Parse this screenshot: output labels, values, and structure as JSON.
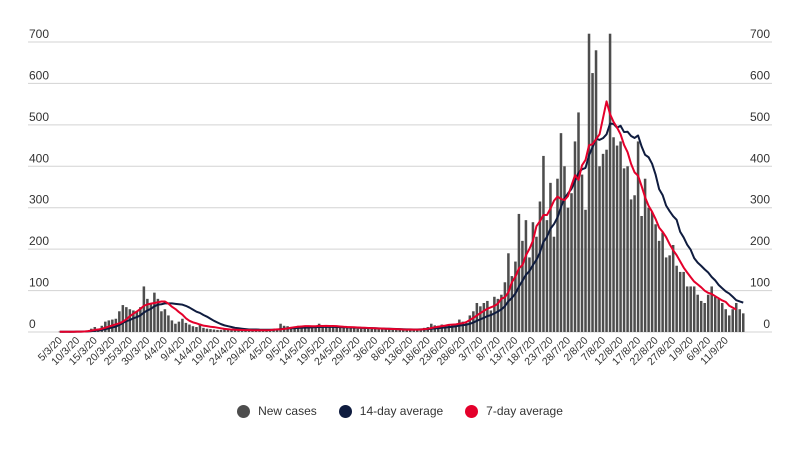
{
  "chart_data": {
    "type": "bar",
    "start_date": "2020-03-05",
    "ylim": [
      0,
      700
    ],
    "yticks": [
      0,
      100,
      200,
      300,
      400,
      500,
      600,
      700
    ],
    "grid": true,
    "legend_position": "bottom-center",
    "x_tick_labels": [
      "5/3/20",
      "10/3/20",
      "15/3/20",
      "20/3/20",
      "25/3/20",
      "30/3/20",
      "4/4/20",
      "9/4/20",
      "14/4/20",
      "19/4/20",
      "24/4/20",
      "29/4/20",
      "4/5/20",
      "9/5/20",
      "14/5/20",
      "19/5/20",
      "24/5/20",
      "29/5/20",
      "3/6/20",
      "8/6/20",
      "13/6/20",
      "18/6/20",
      "23/6/20",
      "28/6/20",
      "3/7/20",
      "8/7/20",
      "13/7/20",
      "18/7/20",
      "23/7/20",
      "28/7/20",
      "2/8/20",
      "7/8/20",
      "12/8/20",
      "17/8/20",
      "22/8/20",
      "27/8/20",
      "1/9/20",
      "6/9/20",
      "11/9/20"
    ],
    "series": [
      {
        "name": "New cases",
        "kind": "bar",
        "color": "#4d4d4d",
        "values": [
          1,
          0,
          1,
          0,
          1,
          1,
          1,
          2,
          3,
          8,
          12,
          8,
          15,
          25,
          28,
          30,
          32,
          50,
          65,
          60,
          55,
          52,
          50,
          60,
          110,
          80,
          70,
          95,
          80,
          50,
          55,
          40,
          28,
          20,
          25,
          32,
          22,
          18,
          14,
          12,
          20,
          10,
          8,
          7,
          6,
          5,
          5,
          6,
          5,
          4,
          4,
          4,
          5,
          3,
          4,
          4,
          3,
          4,
          4,
          5,
          5,
          6,
          8,
          20,
          15,
          14,
          12,
          13,
          15,
          15,
          12,
          12,
          14,
          13,
          20,
          14,
          13,
          15,
          14,
          13,
          12,
          10,
          10,
          9,
          9,
          8,
          8,
          9,
          8,
          8,
          8,
          7,
          7,
          6,
          6,
          5,
          5,
          6,
          5,
          4,
          8,
          5,
          6,
          8,
          10,
          12,
          20,
          16,
          15,
          18,
          14,
          18,
          16,
          20,
          30,
          25,
          22,
          40,
          50,
          70,
          62,
          70,
          75,
          52,
          85,
          80,
          90,
          120,
          190,
          135,
          170,
          285,
          220,
          270,
          180,
          265,
          230,
          315,
          425,
          270,
          360,
          230,
          370,
          480,
          400,
          300,
          335,
          460,
          530,
          380,
          295,
          720,
          625,
          680,
          400,
          430,
          440,
          720,
          470,
          450,
          460,
          395,
          400,
          320,
          330,
          460,
          280,
          370,
          300,
          290,
          260,
          220,
          240,
          180,
          185,
          210,
          160,
          145,
          145,
          110,
          110,
          110,
          90,
          75,
          70,
          90,
          110,
          85,
          80,
          70,
          55,
          40,
          55,
          70,
          55,
          45
        ]
      },
      {
        "name": "14-day average",
        "kind": "line",
        "color": "#0f1c3f",
        "values": [
          0.5,
          0.6,
          0.6,
          0.6,
          0.7,
          0.8,
          0.9,
          1.1,
          1.5,
          2.2,
          3.1,
          3.8,
          5,
          7,
          9,
          11,
          13,
          17,
          22,
          26,
          29,
          33,
          36,
          40,
          47,
          52,
          56,
          62,
          66,
          67,
          69,
          69,
          69,
          68,
          67,
          66,
          63,
          59,
          54,
          49,
          46,
          41,
          37,
          32,
          27,
          23,
          19,
          16,
          14,
          12,
          10,
          9,
          8,
          7,
          6,
          6,
          6,
          5.6,
          5.5,
          5.5,
          5.5,
          5.6,
          5.9,
          7.1,
          7.8,
          8.4,
          8.9,
          9.4,
          9.9,
          10.2,
          10.5,
          10.8,
          11.3,
          11.7,
          12.2,
          12.3,
          12.3,
          12.4,
          12.3,
          12.1,
          11.8,
          11.4,
          11.2,
          10.8,
          10.5,
          10.2,
          9.9,
          9.7,
          9.5,
          9.3,
          9.0,
          8.7,
          8.4,
          8.0,
          7.7,
          7.4,
          7.1,
          6.9,
          6.6,
          6.3,
          6.3,
          6.1,
          6.1,
          6.2,
          6.4,
          6.9,
          7.9,
          8.6,
          9.3,
          10.3,
          10.9,
          11.8,
          12.7,
          13.7,
          15.4,
          16.6,
          17.6,
          19.9,
          22.8,
          27.1,
          30.6,
          34.3,
          38.3,
          40.8,
          44.9,
          49.4,
          54.7,
          62.2,
          74.2,
          82.3,
          92.8,
          109.6,
          123.3,
          138.2,
          146.9,
          161.6,
          174.1,
          192.0,
          217.6,
          229.5,
          249.6,
          260.3,
          276.3,
          301.5,
          322.9,
          334.5,
          345.5,
          363.6,
          384.3,
          392.8,
          396.1,
          426.3,
          445.9,
          467.0,
          463.7,
          467.9,
          477.1,
          502.9,
          502.3,
          493.1,
          497.7,
          482.6,
          483.3,
          473.0,
          468.4,
          474.3,
          447.9,
          427.6,
          421.8,
          406.0,
          379.6,
          344.9,
          330.4,
          305.0,
          291.6,
          279.6,
          270.7,
          242.0,
          228.3,
          210.7,
          198.6,
          178.3,
          167.4,
          159.6,
          151.2,
          143.5,
          132.8,
          124.6,
          113.4,
          105.5,
          98.1,
          92.8,
          85.0,
          76.8,
          73.7,
          70.9
        ]
      },
      {
        "name": "7-day average",
        "kind": "line",
        "color": "#e4002b",
        "values": [
          0.6,
          0.6,
          0.6,
          0.6,
          0.7,
          0.9,
          1.0,
          1.3,
          2.0,
          3.4,
          5.0,
          6.0,
          7.6,
          10.4,
          13.1,
          15.7,
          18.6,
          21.0,
          24.9,
          30.7,
          38.3,
          44.3,
          49.4,
          55.7,
          63.1,
          66.7,
          68.4,
          70.1,
          71.9,
          73.6,
          73.6,
          68.6,
          61.1,
          55.4,
          48.1,
          41.9,
          33.1,
          27.0,
          23.3,
          21.0,
          18.0,
          15.4,
          14.1,
          12.7,
          11.9,
          10.4,
          8.9,
          7.6,
          6.7,
          5.9,
          5.4,
          5.1,
          4.9,
          4.6,
          4.4,
          4.1,
          4.1,
          4.1,
          4.1,
          4.2,
          4.4,
          5.3,
          6.4,
          6.4,
          7.4,
          8.7,
          10.3,
          11.6,
          12.7,
          13.4,
          14.1,
          14.1,
          13.9,
          13.9,
          14.7,
          14.5,
          14.7,
          14.6,
          14.4,
          14.1,
          13.4,
          12.6,
          12.1,
          11.9,
          11.4,
          11.0,
          10.6,
          10.4,
          9.8,
          9.3,
          8.9,
          8.6,
          8.3,
          7.9,
          7.6,
          7.3,
          6.9,
          6.5,
          6.1,
          5.7,
          5.9,
          5.6,
          5.7,
          6.1,
          7.0,
          7.7,
          9.6,
          11.3,
          12.6,
          14.1,
          15.3,
          17.3,
          17.9,
          18.4,
          20.1,
          21.3,
          24.0,
          28.9,
          34.0,
          39.9,
          45.6,
          51.1,
          56.1,
          59.7,
          62.9,
          68.6,
          80.3,
          83.9,
          95.6,
          120.4,
          133.6,
          153.6,
          161.4,
          185.1,
          200.7,
          220.1,
          255.4,
          267.3,
          282.4,
          282.3,
          298.1,
          316.7,
          326.7,
          321.3,
          318.4,
          328.1,
          353.9,
          378.3,
          367.4,
          402.3,
          415.3,
          450.7,
          453.3,
          465.3,
          477.1,
          516.7,
          556.7,
          525.9,
          507.1,
          493.6,
          477.1,
          451.4,
          434.0,
          405.8,
          385.3,
          377.1,
          352.1,
          325.3,
          304.4,
          290.1,
          272.7,
          252.0,
          241.7,
          228.9,
          211.9,
          197.5,
          185.4,
          170.6,
          155.6,
          143.6,
          132.4,
          121.7,
          114.9,
          107.9,
          99.7,
          94.5,
          91.7,
          86.4,
          81.3,
          76.1,
          72.6,
          63.5,
          58.8,
          53.9
        ]
      }
    ]
  }
}
